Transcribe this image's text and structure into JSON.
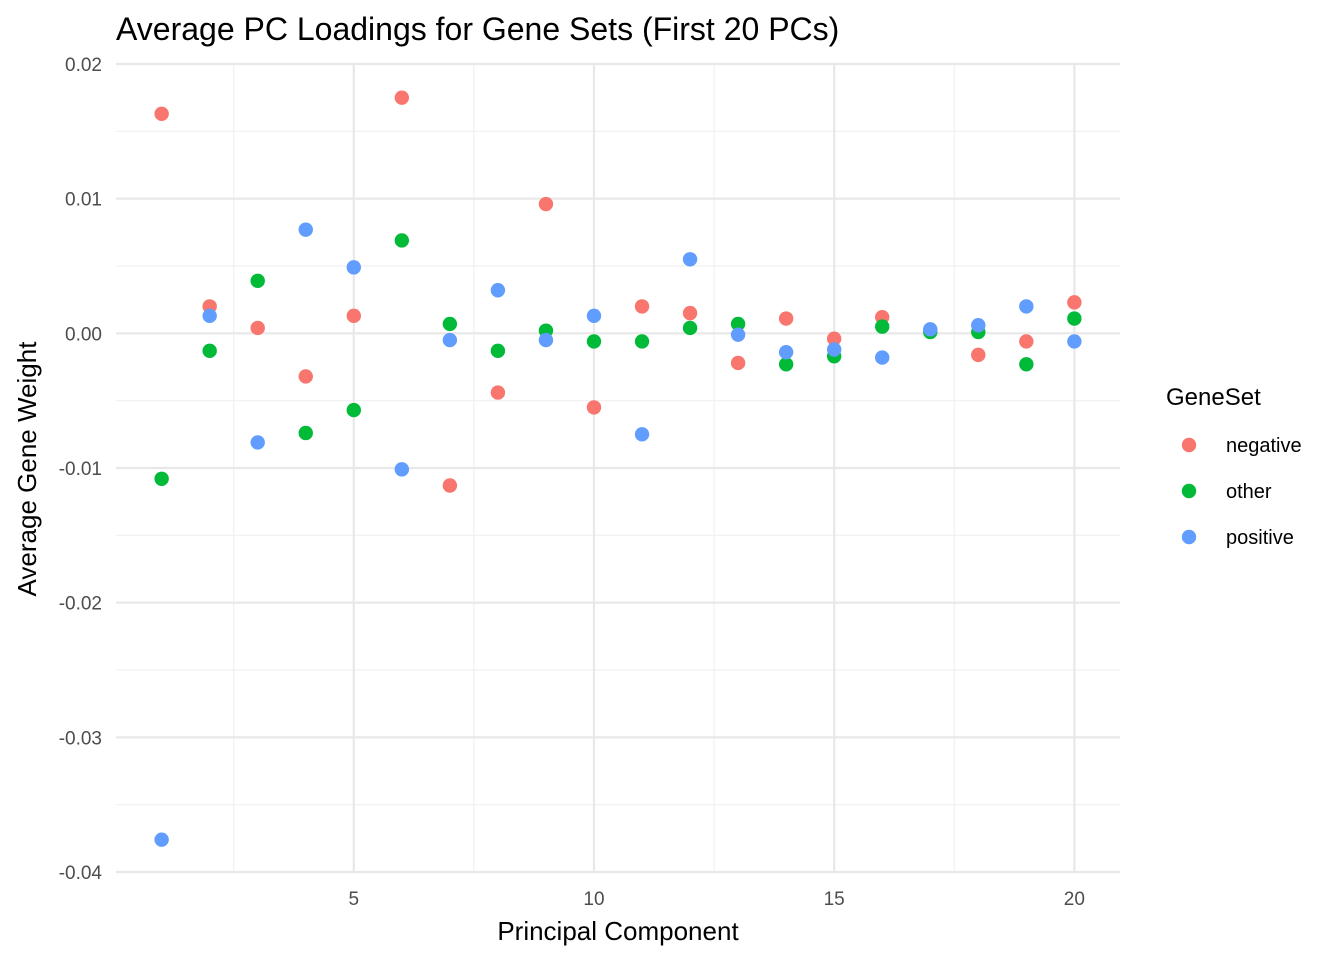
{
  "chart_data": {
    "type": "scatter",
    "title": "Average PC Loadings for Gene Sets (First 20 PCs)",
    "xlabel": "Principal Component",
    "ylabel": "Average Gene Weight",
    "xlim": [
      0.05,
      20.95
    ],
    "ylim": [
      -0.04,
      0.02
    ],
    "x_ticks": [
      5,
      10,
      15,
      20
    ],
    "x_tick_labels": [
      "5",
      "10",
      "15",
      "20"
    ],
    "y_ticks": [
      -0.04,
      -0.03,
      -0.02,
      -0.01,
      0.0,
      0.01,
      0.02
    ],
    "y_tick_labels": [
      "-0.04",
      "-0.03",
      "-0.02",
      "-0.01",
      "0.00",
      "0.01",
      "0.02"
    ],
    "grid": true,
    "legend": {
      "title": "GeneSet",
      "position": "right"
    },
    "series": [
      {
        "name": "negative",
        "color": "#F8766D",
        "x": [
          1,
          2,
          3,
          4,
          5,
          6,
          7,
          8,
          9,
          10,
          11,
          12,
          13,
          14,
          15,
          16,
          17,
          18,
          19,
          20
        ],
        "y": [
          0.0163,
          0.002,
          0.0004,
          -0.0032,
          0.0013,
          0.0175,
          -0.0113,
          -0.0044,
          0.0096,
          -0.0055,
          0.002,
          0.0015,
          -0.0022,
          0.0011,
          -0.0004,
          0.0012,
          0.0002,
          -0.0016,
          -0.0006,
          0.0023
        ]
      },
      {
        "name": "other",
        "color": "#00BA38",
        "x": [
          1,
          2,
          3,
          4,
          5,
          6,
          7,
          8,
          9,
          10,
          11,
          12,
          13,
          14,
          15,
          16,
          17,
          18,
          19,
          20
        ],
        "y": [
          -0.0108,
          -0.0013,
          0.0039,
          -0.0074,
          -0.0057,
          0.0069,
          0.0007,
          -0.0013,
          0.0002,
          -0.0006,
          -0.0006,
          0.0004,
          0.0007,
          -0.0023,
          -0.0017,
          0.0005,
          0.0001,
          0.0001,
          -0.0023,
          0.0011
        ]
      },
      {
        "name": "positive",
        "color": "#619CFF",
        "x": [
          1,
          2,
          3,
          4,
          5,
          6,
          7,
          8,
          9,
          10,
          11,
          12,
          13,
          14,
          15,
          16,
          17,
          18,
          19,
          20
        ],
        "y": [
          -0.0376,
          0.0013,
          -0.0081,
          0.0077,
          0.0049,
          -0.0101,
          -0.0005,
          0.0032,
          -0.0005,
          0.0013,
          -0.0075,
          0.0055,
          -0.0001,
          -0.0014,
          -0.0012,
          -0.0018,
          0.0003,
          0.0006,
          0.002,
          -0.0006
        ]
      }
    ]
  }
}
